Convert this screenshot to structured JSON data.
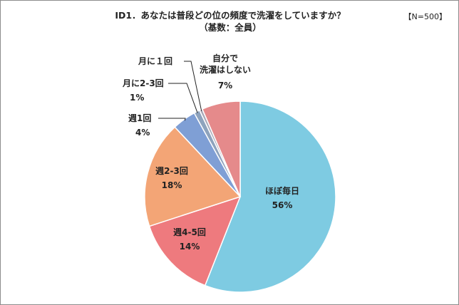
{
  "title_line1": "ID1．あなたは普段どの位の頻度で洗濯をしていますか？",
  "title_line2": "（基数：全員）",
  "sample_size": "【N=500】",
  "chart_data": {
    "type": "pie",
    "slices": [
      {
        "label": "ほぼ毎日",
        "value": 56,
        "display": "56%",
        "color": "#7ecbe2"
      },
      {
        "label": "週4-5回",
        "value": 14,
        "display": "14%",
        "color": "#ee7a7e"
      },
      {
        "label": "週2-3回",
        "value": 18,
        "display": "18%",
        "color": "#f3a576"
      },
      {
        "label": "週1回",
        "value": 4,
        "display": "4%",
        "color": "#7f9fd5"
      },
      {
        "label": "月に2-3回",
        "value": 1,
        "display": "1%",
        "color": "#8ea3bd"
      },
      {
        "label": "月に１回",
        "value": 0,
        "display": "",
        "color": "#a9a9b8"
      },
      {
        "label": "自分で洗濯はしない",
        "label_lines": [
          "自分で",
          "洗濯はしない"
        ],
        "value": 7,
        "display": "7%",
        "color": "#e58a8b"
      }
    ]
  }
}
